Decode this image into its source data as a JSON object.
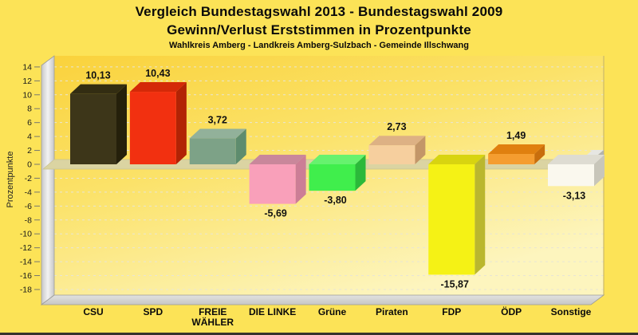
{
  "titles": {
    "line1": "Vergleich Bundestagswahl 2013 - Bundestagswahl 2009",
    "line2": "Gewinn/Verlust Erststimmen in Prozentpunkte",
    "line3": "Wahlkreis Amberg - Landkreis Amberg-Sulzbach - Gemeinde Illschwang"
  },
  "chart_data": {
    "type": "bar",
    "style": "3d-column",
    "title": "Vergleich Bundestagswahl 2013 - Bundestagswahl 2009",
    "subtitle": "Gewinn/Verlust Erststimmen in Prozentpunkte",
    "subsubtitle": "Wahlkreis Amberg - Landkreis Amberg-Sulzbach - Gemeinde Illschwang",
    "xlabel": "",
    "ylabel": "Prozentpunkte",
    "ylim": [
      -18,
      14
    ],
    "ytick_step": 2,
    "grid": "dashed-horizontal",
    "legend": "none",
    "categories": [
      "CSU",
      "SPD",
      "FREIE WÄHLER",
      "DIE LINKE",
      "Grüne",
      "Piraten",
      "FDP",
      "ÖDP",
      "Sonstige"
    ],
    "values": [
      10.13,
      10.43,
      3.72,
      -5.69,
      -3.8,
      2.73,
      -15.87,
      1.49,
      -3.13
    ],
    "value_labels": [
      "10,13",
      "10,43",
      "3,72",
      "-5,69",
      "-3,80",
      "2,73",
      "-15,87",
      "1,49",
      "-3,13"
    ],
    "bars": [
      {
        "party": "CSU",
        "slug": "csu",
        "label_lines": [
          "CSU"
        ],
        "value": 10.13,
        "value_label": "10,13",
        "front": "#3D3619",
        "top": "#332D12",
        "side": "#25200B"
      },
      {
        "party": "SPD",
        "slug": "spd",
        "label_lines": [
          "SPD"
        ],
        "value": 10.43,
        "value_label": "10,43",
        "front": "#F23010",
        "top": "#D42908",
        "side": "#B22305"
      },
      {
        "party": "FREIE WÄHLER",
        "slug": "freie-waehler",
        "label_lines": [
          "FREIE",
          "WÄHLER"
        ],
        "value": 3.72,
        "value_label": "3,72",
        "front": "#7DA287",
        "top": "#92B19A",
        "side": "#5E8C6E"
      },
      {
        "party": "DIE LINKE",
        "slug": "die-linke",
        "label_lines": [
          "DIE LINKE"
        ],
        "value": -5.69,
        "value_label": "-5,69",
        "front": "#F9A0BA",
        "top": "#C9879B",
        "side": "#CC7E96"
      },
      {
        "party": "Grüne",
        "slug": "gruene",
        "label_lines": [
          "Grüne"
        ],
        "value": -3.8,
        "value_label": "-3,80",
        "front": "#40EE4C",
        "top": "#66F26E",
        "side": "#2BB93A"
      },
      {
        "party": "Piraten",
        "slug": "piraten",
        "label_lines": [
          "Piraten"
        ],
        "value": 2.73,
        "value_label": "2,73",
        "front": "#F6CF9E",
        "top": "#DDB184",
        "side": "#C39668"
      },
      {
        "party": "FDP",
        "slug": "fdp",
        "label_lines": [
          "FDP"
        ],
        "value": -15.87,
        "value_label": "-15,87",
        "front": "#F5F215",
        "top": "#D8D410",
        "side": "#BAB72E"
      },
      {
        "party": "ÖDP",
        "slug": "oedp",
        "label_lines": [
          "ÖDP"
        ],
        "value": 1.49,
        "value_label": "1,49",
        "front": "#F59D30",
        "top": "#E0800F",
        "side": "#C86E0D"
      },
      {
        "party": "Sonstige",
        "slug": "sonstige",
        "label_lines": [
          "Sonstige"
        ],
        "value": -3.13,
        "value_label": "-3,13",
        "front": "#FAF8EE",
        "top": "#DEDCD2",
        "side": "#C8C6BA"
      }
    ],
    "colors": {
      "page_background": "#FCE357",
      "plot_gradient_top": "#FAD23C",
      "plot_gradient_mid": "#FBE269",
      "plot_gradient_bottom": "#FDF5BE",
      "gridline": "#E8E5D6",
      "zero_band": "#DBD4A2",
      "zero_band_edge": "#C9C28D",
      "wall_light": "#F2F2F2",
      "wall_dark": "#C7C7C7",
      "floor_light": "#E2E2E0",
      "floor_dark": "#C6C6C4",
      "frame_edge": "#9C9C98",
      "right_border": "#CBB96B",
      "end_cap_top": "#E6E6E2",
      "end_cap_side": "#B2B2AE",
      "text": "#0A0A0A",
      "tick_text": "#1A1A1A",
      "window_bottom_border": "#35332C"
    }
  }
}
